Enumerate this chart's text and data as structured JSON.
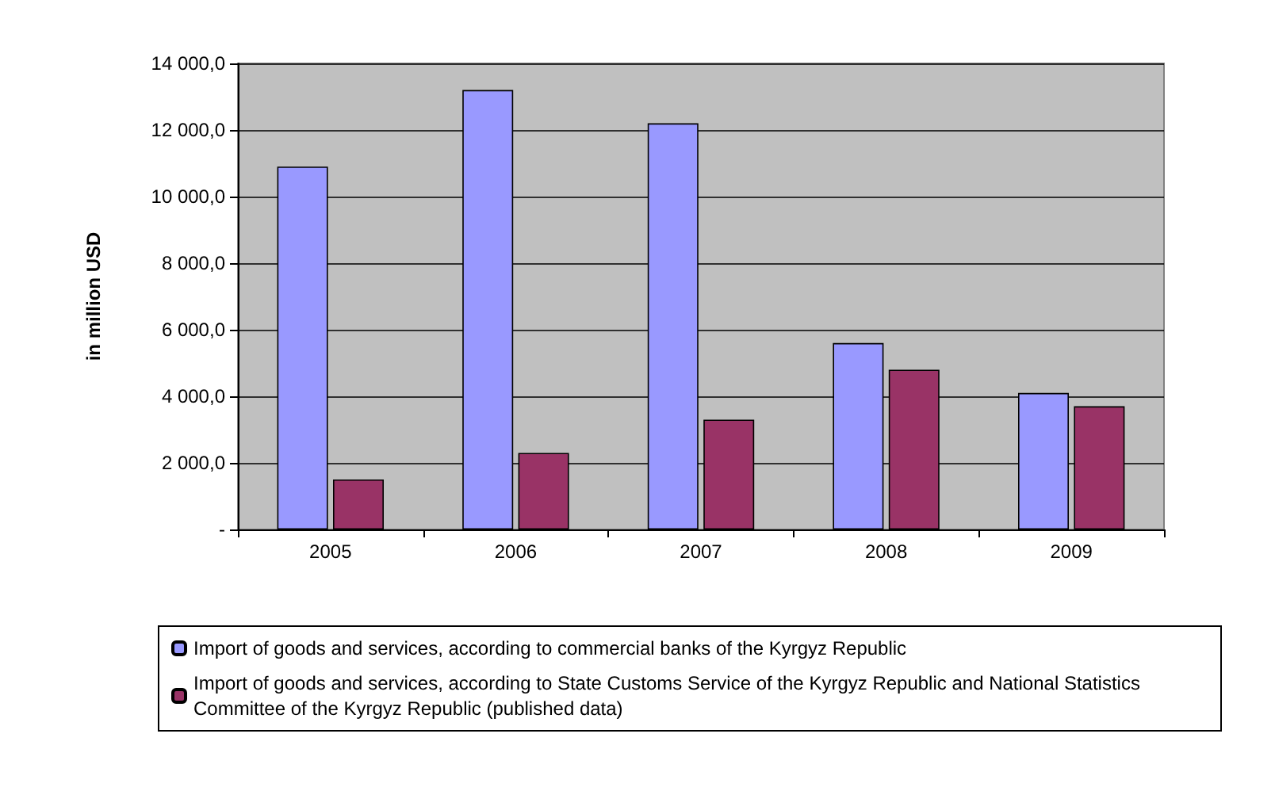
{
  "chart_data": {
    "type": "bar",
    "ylabel": "in million USD",
    "categories": [
      "2005",
      "2006",
      "2007",
      "2008",
      "2009"
    ],
    "series": [
      {
        "name": "Import of goods and services, according to commercial banks of the Kyrgyz Republic",
        "color": "#9999ff",
        "values": [
          10900,
          13200,
          12200,
          5600,
          4100
        ]
      },
      {
        "name": "Import of goods and services, according to State Customs Service of the Kyrgyz Republic and National Statistics Committee of the Kyrgyz Republic (published data)",
        "color": "#993366",
        "values": [
          1500,
          2300,
          3300,
          4800,
          3700
        ]
      }
    ],
    "ylim": [
      0,
      14000
    ],
    "yticks": [
      {
        "value": 0,
        "label": "-"
      },
      {
        "value": 2000,
        "label": "2 000,0"
      },
      {
        "value": 4000,
        "label": "4 000,0"
      },
      {
        "value": 6000,
        "label": "6 000,0"
      },
      {
        "value": 8000,
        "label": "8 000,0"
      },
      {
        "value": 10000,
        "label": "10 000,0"
      },
      {
        "value": 12000,
        "label": "12 000,0"
      },
      {
        "value": 14000,
        "label": "14 000,0"
      }
    ],
    "grid": "y",
    "legend": "bottom"
  }
}
